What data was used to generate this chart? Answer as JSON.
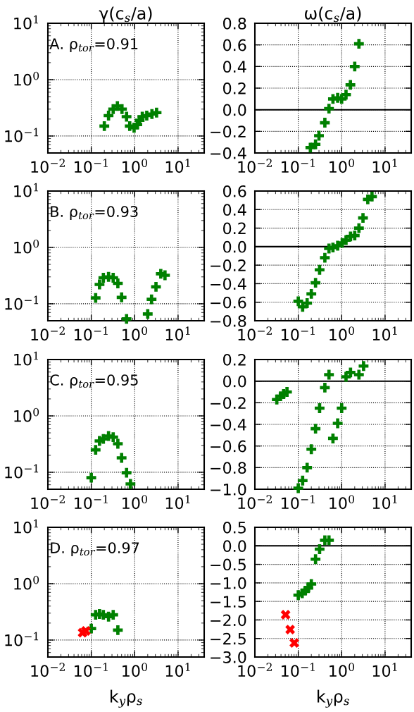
{
  "chart_data": [
    {
      "type": "scatter",
      "title": "γ(c$_{s}$/a)",
      "annotations": [
        "A. ρ$_{tor}$=0.91"
      ],
      "log": "xy",
      "grid": true,
      "xlim": [
        0.01,
        40
      ],
      "xticks": [
        {
          "value": 0.01,
          "label": "10$^{−2}$"
        },
        {
          "value": 0.1,
          "label": "10$^{−1}$"
        },
        {
          "value": 1,
          "label": "10$^{0}$"
        },
        {
          "value": 10,
          "label": "10$^{1}$"
        }
      ],
      "ylim": [
        0.05,
        10
      ],
      "yticks": [
        {
          "value": 0.1,
          "label": "10$^{−1}$"
        },
        {
          "value": 1,
          "label": "10$^{0}$"
        },
        {
          "value": 10,
          "label": "10$^{1}$"
        }
      ],
      "series": [
        {
          "color": "#008000",
          "marker": "plus",
          "x": [
            0.2,
            0.25,
            0.32,
            0.4,
            0.51,
            0.65,
            0.77,
            0.97,
            1.15,
            1.3,
            1.5,
            1.9,
            2.5,
            3.2
          ],
          "values": [
            0.15,
            0.23,
            0.3,
            0.34,
            0.3,
            0.22,
            0.15,
            0.14,
            0.16,
            0.19,
            0.22,
            0.23,
            0.245,
            0.26
          ]
        }
      ]
    },
    {
      "type": "scatter",
      "title": "ω(c$_{s}$/a)",
      "grid": true,
      "log": "x",
      "xlim": [
        0.01,
        40
      ],
      "xticks": [
        {
          "value": 0.01,
          "label": "10$^{−2}$"
        },
        {
          "value": 0.1,
          "label": "10$^{−1}$"
        },
        {
          "value": 1,
          "label": "10$^{0}$"
        },
        {
          "value": 10,
          "label": "10$^{1}$"
        }
      ],
      "ylim": [
        -0.4,
        0.8
      ],
      "yticks": [
        {
          "value": -0.4,
          "label": "−0.4"
        },
        {
          "value": -0.2,
          "label": "−0.2"
        },
        {
          "value": 0.0,
          "label": "0.0"
        },
        {
          "value": 0.2,
          "label": "0.2"
        },
        {
          "value": 0.4,
          "label": "0.4"
        },
        {
          "value": 0.6,
          "label": "0.6"
        },
        {
          "value": 0.8,
          "label": "0.8"
        }
      ],
      "ref_lines": [
        {
          "axis": "y",
          "value": 0,
          "color": "#000000",
          "line_style": "solid"
        }
      ],
      "series": [
        {
          "color": "#008000",
          "marker": "plus",
          "x": [
            0.19,
            0.25,
            0.3,
            0.41,
            0.51,
            0.63,
            0.81,
            1.0,
            1.26,
            1.59,
            2.0,
            2.5
          ],
          "values": [
            -0.35,
            -0.32,
            -0.24,
            -0.12,
            0.01,
            0.1,
            0.11,
            0.1,
            0.14,
            0.23,
            0.4,
            0.61
          ]
        }
      ]
    },
    {
      "type": "scatter",
      "annotations": [
        "B. ρ$_{tor}$=0.93"
      ],
      "log": "xy",
      "grid": true,
      "xlim": [
        0.01,
        40
      ],
      "xticks": [
        {
          "value": 0.01,
          "label": "10$^{−2}$"
        },
        {
          "value": 0.1,
          "label": "10$^{−1}$"
        },
        {
          "value": 1,
          "label": "10$^{0}$"
        },
        {
          "value": 10,
          "label": "10$^{1}$"
        }
      ],
      "ylim": [
        0.05,
        10
      ],
      "yticks": [
        {
          "value": 0.1,
          "label": "10$^{−1}$"
        },
        {
          "value": 1,
          "label": "10$^{0}$"
        },
        {
          "value": 10,
          "label": "10$^{1}$"
        }
      ],
      "series": [
        {
          "color": "#008000",
          "marker": "plus",
          "x": [
            0.126,
            0.155,
            0.19,
            0.25,
            0.32,
            0.41,
            0.5,
            0.65,
            2.0,
            2.45,
            3.1,
            4.0,
            5.0
          ],
          "values": [
            0.127,
            0.22,
            0.29,
            0.3,
            0.29,
            0.23,
            0.13,
            0.054,
            0.066,
            0.12,
            0.2,
            0.34,
            0.32
          ]
        }
      ]
    },
    {
      "type": "scatter",
      "grid": true,
      "log": "x",
      "xlim": [
        0.01,
        40
      ],
      "xticks": [
        {
          "value": 0.01,
          "label": "10$^{−2}$"
        },
        {
          "value": 0.1,
          "label": "10$^{−1}$"
        },
        {
          "value": 1,
          "label": "10$^{0}$"
        },
        {
          "value": 10,
          "label": "10$^{1}$"
        }
      ],
      "ylim": [
        -0.8,
        0.6
      ],
      "yticks": [
        {
          "value": -0.8,
          "label": "−0.8"
        },
        {
          "value": -0.6,
          "label": "−0.6"
        },
        {
          "value": -0.4,
          "label": "−0.4"
        },
        {
          "value": -0.2,
          "label": "−0.2"
        },
        {
          "value": 0.0,
          "label": "0.0"
        },
        {
          "value": 0.2,
          "label": "0.2"
        },
        {
          "value": 0.4,
          "label": "0.4"
        },
        {
          "value": 0.6,
          "label": "0.6"
        }
      ],
      "ref_lines": [
        {
          "axis": "y",
          "value": 0,
          "color": "#000000",
          "line_style": "solid"
        }
      ],
      "series": [
        {
          "color": "#008000",
          "marker": "plus",
          "x": [
            0.1,
            0.126,
            0.16,
            0.2,
            0.25,
            0.31,
            0.41,
            0.51,
            0.63,
            0.81,
            1.03,
            1.26,
            1.6,
            2.0,
            2.5,
            3.1,
            4.0,
            5.0
          ],
          "values": [
            -0.59,
            -0.65,
            -0.61,
            -0.51,
            -0.39,
            -0.25,
            -0.12,
            -0.02,
            -0.01,
            0.01,
            0.04,
            0.07,
            0.11,
            0.12,
            0.2,
            0.31,
            0.51,
            0.54
          ]
        }
      ]
    },
    {
      "type": "scatter",
      "annotations": [
        "C. ρ$_{tor}$=0.95"
      ],
      "log": "xy",
      "grid": true,
      "xlim": [
        0.01,
        40
      ],
      "xticks": [
        {
          "value": 0.01,
          "label": "10$^{−2}$"
        },
        {
          "value": 0.1,
          "label": "10$^{−1}$"
        },
        {
          "value": 1,
          "label": "10$^{0}$"
        },
        {
          "value": 10,
          "label": "10$^{1}$"
        }
      ],
      "ylim": [
        0.05,
        10
      ],
      "yticks": [
        {
          "value": 0.1,
          "label": "10$^{−1}$"
        },
        {
          "value": 1,
          "label": "10$^{0}$"
        },
        {
          "value": 10,
          "label": "10$^{1}$"
        }
      ],
      "series": [
        {
          "color": "#008000",
          "marker": "plus",
          "x": [
            0.1,
            0.126,
            0.155,
            0.19,
            0.25,
            0.32,
            0.41,
            0.5,
            0.65,
            0.8
          ],
          "values": [
            0.08,
            0.25,
            0.36,
            0.39,
            0.44,
            0.42,
            0.32,
            0.18,
            0.098,
            0.062
          ]
        }
      ]
    },
    {
      "type": "scatter",
      "grid": true,
      "log": "x",
      "xlim": [
        0.01,
        40
      ],
      "xticks": [
        {
          "value": 0.01,
          "label": "10$^{−2}$"
        },
        {
          "value": 0.1,
          "label": "10$^{−1}$"
        },
        {
          "value": 1,
          "label": "10$^{0}$"
        },
        {
          "value": 10,
          "label": "10$^{1}$"
        }
      ],
      "ylim": [
        -1.0,
        0.2
      ],
      "yticks": [
        {
          "value": -1.0,
          "label": "−1.0"
        },
        {
          "value": -0.8,
          "label": "−0.8"
        },
        {
          "value": -0.6,
          "label": "−0.6"
        },
        {
          "value": -0.4,
          "label": "−0.4"
        },
        {
          "value": -0.2,
          "label": "−0.2"
        },
        {
          "value": 0.0,
          "label": "0.0"
        },
        {
          "value": 0.2,
          "label": "0.2"
        }
      ],
      "ref_lines": [
        {
          "axis": "y",
          "value": 0,
          "color": "#000000",
          "line_style": "solid"
        }
      ],
      "series": [
        {
          "color": "#008000",
          "marker": "plus",
          "x": [
            0.032,
            0.039,
            0.046,
            0.055,
            0.1,
            0.126,
            0.16,
            0.2,
            0.25,
            0.31,
            0.41,
            0.51,
            0.63,
            0.81,
            1.0,
            1.26,
            1.6,
            2.5,
            3.2
          ],
          "values": [
            -0.17,
            -0.14,
            -0.12,
            -0.1,
            -0.99,
            -0.92,
            -0.8,
            -0.63,
            -0.44,
            -0.25,
            -0.06,
            0.06,
            -0.53,
            -0.39,
            -0.25,
            0.04,
            0.08,
            0.06,
            0.14
          ]
        }
      ]
    },
    {
      "type": "scatter",
      "annotations": [
        "D. ρ$_{tor}$=0.97"
      ],
      "xlabel": "k$_{y}$ρ$_{s}$",
      "log": "xy",
      "grid": true,
      "xlim": [
        0.01,
        40
      ],
      "xticks": [
        {
          "value": 0.01,
          "label": "10$^{−2}$"
        },
        {
          "value": 0.1,
          "label": "10$^{−1}$"
        },
        {
          "value": 1,
          "label": "10$^{0}$"
        },
        {
          "value": 10,
          "label": "10$^{1}$"
        }
      ],
      "ylim": [
        0.05,
        10
      ],
      "yticks": [
        {
          "value": 0.1,
          "label": "10$^{−1}$"
        },
        {
          "value": 1,
          "label": "10$^{0}$"
        },
        {
          "value": 10,
          "label": "10$^{1}$"
        }
      ],
      "series": [
        {
          "color": "#008000",
          "marker": "plus",
          "x": [
            0.1,
            0.126,
            0.155,
            0.19,
            0.25,
            0.32,
            0.41
          ],
          "values": [
            0.16,
            0.28,
            0.29,
            0.28,
            0.26,
            0.28,
            0.15
          ]
        },
        {
          "color": "#ff0000",
          "marker": "cross",
          "x": [
            0.063,
            0.075
          ],
          "values": [
            0.135,
            0.145
          ]
        }
      ]
    },
    {
      "type": "scatter",
      "xlabel": "k$_{y}$ρ$_{s}$",
      "grid": true,
      "log": "x",
      "xlim": [
        0.01,
        40
      ],
      "xticks": [
        {
          "value": 0.01,
          "label": "10$^{−2}$"
        },
        {
          "value": 0.1,
          "label": "10$^{−1}$"
        },
        {
          "value": 1,
          "label": "10$^{0}$"
        },
        {
          "value": 10,
          "label": "10$^{1}$"
        }
      ],
      "ylim": [
        -3.0,
        0.5
      ],
      "yticks": [
        {
          "value": -3.0,
          "label": "−3.0"
        },
        {
          "value": -2.5,
          "label": "−2.5"
        },
        {
          "value": -2.0,
          "label": "−2.0"
        },
        {
          "value": -1.5,
          "label": "−1.5"
        },
        {
          "value": -1.0,
          "label": "−1.0"
        },
        {
          "value": -0.5,
          "label": "−0.5"
        },
        {
          "value": 0.0,
          "label": "0.0"
        },
        {
          "value": 0.5,
          "label": "0.5"
        }
      ],
      "ref_lines": [
        {
          "axis": "y",
          "value": 0,
          "color": "#000000",
          "line_style": "solid"
        }
      ],
      "series": [
        {
          "color": "#008000",
          "marker": "plus",
          "x": [
            0.1,
            0.123,
            0.145,
            0.17,
            0.2,
            0.25,
            0.31,
            0.41,
            0.51
          ],
          "values": [
            -1.33,
            -1.28,
            -1.21,
            -1.14,
            -1.03,
            -0.36,
            -0.09,
            0.15,
            0.15
          ]
        },
        {
          "color": "#ff0000",
          "marker": "cross",
          "x": [
            0.051,
            0.065,
            0.081
          ],
          "values": [
            -1.86,
            -2.26,
            -2.62
          ]
        }
      ]
    }
  ]
}
